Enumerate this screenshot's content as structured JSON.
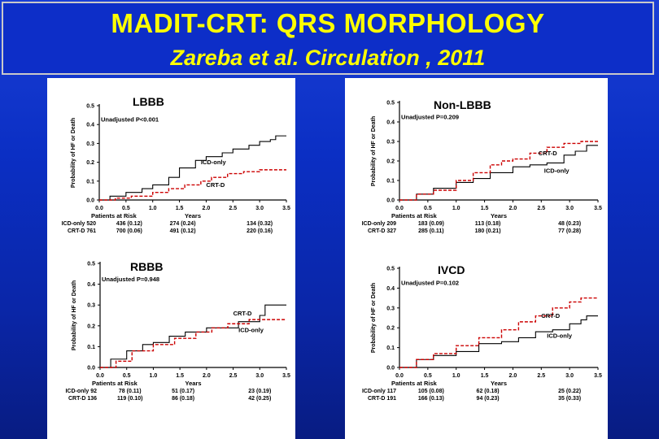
{
  "header": {
    "title": "MADIT-CRT: QRS MORPHOLOGY",
    "subtitle": "Zareba et al. Circulation , 2011"
  },
  "chart_data": [
    {
      "type": "line",
      "title": "LBBB",
      "ylabel": "Probability of HF or Death",
      "xlabel": "Years",
      "xlim": [
        0,
        3.5
      ],
      "ylim": [
        0,
        0.5
      ],
      "xticks": [
        "0.0",
        "0.5",
        "1.0",
        "1.5",
        "2.0",
        "2.5",
        "3.0",
        "3.5"
      ],
      "yticks": [
        "0.0",
        "0.1",
        "0.2",
        "0.3",
        "0.4",
        "0.5"
      ],
      "pvalue_text": "Unadjusted P<0.001",
      "series": [
        {
          "name": "ICD-only",
          "style": "solid",
          "color": "#000000",
          "points": [
            [
              0,
              0
            ],
            [
              0.2,
              0.02
            ],
            [
              0.5,
              0.04
            ],
            [
              0.8,
              0.06
            ],
            [
              1.0,
              0.08
            ],
            [
              1.3,
              0.12
            ],
            [
              1.5,
              0.17
            ],
            [
              1.8,
              0.21
            ],
            [
              2.0,
              0.23
            ],
            [
              2.3,
              0.25
            ],
            [
              2.5,
              0.27
            ],
            [
              2.8,
              0.29
            ],
            [
              3.0,
              0.31
            ],
            [
              3.2,
              0.32
            ],
            [
              3.3,
              0.34
            ],
            [
              3.5,
              0.34
            ]
          ]
        },
        {
          "name": "CRT-D",
          "style": "dashed",
          "color": "#cc0000",
          "points": [
            [
              0,
              0
            ],
            [
              0.3,
              0.01
            ],
            [
              0.6,
              0.02
            ],
            [
              1.0,
              0.04
            ],
            [
              1.3,
              0.06
            ],
            [
              1.6,
              0.08
            ],
            [
              1.9,
              0.1
            ],
            [
              2.1,
              0.12
            ],
            [
              2.4,
              0.14
            ],
            [
              2.7,
              0.15
            ],
            [
              3.0,
              0.16
            ],
            [
              3.5,
              0.16
            ]
          ]
        }
      ],
      "annotations": [
        {
          "text": "ICD-only",
          "x": 1.9,
          "y": 0.19
        },
        {
          "text": "CRT-D",
          "x": 2.0,
          "y": 0.07
        }
      ],
      "risk_table": {
        "header": "Patients at Risk",
        "rows": [
          {
            "label": "ICD-only 520",
            "values": [
              "436 (0.12)",
              "274 (0.24)",
              "134 (0.32)"
            ]
          },
          {
            "label": "CRT-D 761",
            "values": [
              "700 (0.06)",
              "491 (0.12)",
              "220 (0.16)"
            ]
          }
        ]
      }
    },
    {
      "type": "line",
      "title": "Non-LBBB",
      "ylabel": "Probability of HF or Death",
      "xlabel": "Years",
      "xlim": [
        0,
        3.5
      ],
      "ylim": [
        0,
        0.5
      ],
      "xticks": [
        "0.0",
        "0.5",
        "1.0",
        "1.5",
        "2.0",
        "2.5",
        "3.0",
        "3.5"
      ],
      "yticks": [
        "0.0",
        "0.1",
        "0.2",
        "0.3",
        "0.4",
        "0.5"
      ],
      "pvalue_text": "Unadjusted P=0.209",
      "series": [
        {
          "name": "ICD-only",
          "style": "solid",
          "color": "#000000",
          "points": [
            [
              0,
              0
            ],
            [
              0.3,
              0.03
            ],
            [
              0.6,
              0.06
            ],
            [
              1.0,
              0.09
            ],
            [
              1.3,
              0.11
            ],
            [
              1.6,
              0.14
            ],
            [
              2.0,
              0.17
            ],
            [
              2.3,
              0.18
            ],
            [
              2.6,
              0.19
            ],
            [
              2.9,
              0.23
            ],
            [
              3.1,
              0.25
            ],
            [
              3.3,
              0.28
            ],
            [
              3.5,
              0.28
            ]
          ]
        },
        {
          "name": "CRT-D",
          "style": "dashed",
          "color": "#cc0000",
          "points": [
            [
              0,
              0
            ],
            [
              0.3,
              0.03
            ],
            [
              0.6,
              0.05
            ],
            [
              1.0,
              0.1
            ],
            [
              1.3,
              0.14
            ],
            [
              1.6,
              0.18
            ],
            [
              1.8,
              0.2
            ],
            [
              2.0,
              0.21
            ],
            [
              2.3,
              0.24
            ],
            [
              2.6,
              0.27
            ],
            [
              2.9,
              0.29
            ],
            [
              3.2,
              0.3
            ],
            [
              3.5,
              0.3
            ]
          ]
        }
      ],
      "annotations": [
        {
          "text": "CRT-D",
          "x": 2.45,
          "y": 0.23
        },
        {
          "text": "ICD-only",
          "x": 2.55,
          "y": 0.14
        }
      ],
      "risk_table": {
        "header": "Patients at Risk",
        "rows": [
          {
            "label": "ICD-only 209",
            "values": [
              "183 (0.09)",
              "113 (0.18)",
              "48 (0.23)"
            ]
          },
          {
            "label": "CRT-D 327",
            "values": [
              "285 (0.11)",
              "180 (0.21)",
              "77 (0.28)"
            ]
          }
        ]
      }
    },
    {
      "type": "line",
      "title": "RBBB",
      "ylabel": "Probability of HF or Death",
      "xlabel": "Years",
      "xlim": [
        0,
        3.5
      ],
      "ylim": [
        0,
        0.5
      ],
      "xticks": [
        "0.0",
        "0.5",
        "1.0",
        "1.5",
        "2.0",
        "2.5",
        "3.0",
        "3.5"
      ],
      "yticks": [
        "0.0",
        "0.1",
        "0.2",
        "0.3",
        "0.4",
        "0.5"
      ],
      "pvalue_text": "Unadjusted P=0.948",
      "series": [
        {
          "name": "ICD-only",
          "style": "solid",
          "color": "#000000",
          "points": [
            [
              0,
              0
            ],
            [
              0.2,
              0.04
            ],
            [
              0.5,
              0.08
            ],
            [
              0.8,
              0.11
            ],
            [
              1.0,
              0.12
            ],
            [
              1.3,
              0.15
            ],
            [
              1.6,
              0.17
            ],
            [
              2.0,
              0.19
            ],
            [
              2.3,
              0.19
            ],
            [
              2.6,
              0.22
            ],
            [
              3.0,
              0.25
            ],
            [
              3.1,
              0.3
            ],
            [
              3.5,
              0.3
            ]
          ]
        },
        {
          "name": "CRT-D",
          "style": "dashed",
          "color": "#cc0000",
          "points": [
            [
              0,
              0
            ],
            [
              0.3,
              0.03
            ],
            [
              0.6,
              0.08
            ],
            [
              1.0,
              0.11
            ],
            [
              1.4,
              0.14
            ],
            [
              1.8,
              0.17
            ],
            [
              2.1,
              0.19
            ],
            [
              2.4,
              0.21
            ],
            [
              2.8,
              0.23
            ],
            [
              3.2,
              0.23
            ],
            [
              3.5,
              0.23
            ]
          ]
        }
      ],
      "annotations": [
        {
          "text": "CRT-D",
          "x": 2.5,
          "y": 0.25
        },
        {
          "text": "ICD-only",
          "x": 2.6,
          "y": 0.17
        }
      ],
      "risk_table": {
        "header": "Patients at Risk",
        "rows": [
          {
            "label": "ICD-only 92",
            "values": [
              "78 (0.11)",
              "51 (0.17)",
              "23 (0.19)"
            ]
          },
          {
            "label": "CRT-D 136",
            "values": [
              "119 (0.10)",
              "86 (0.18)",
              "42 (0.25)"
            ]
          }
        ]
      }
    },
    {
      "type": "line",
      "title": "IVCD",
      "ylabel": "Probability of HF or Death",
      "xlabel": "Years",
      "xlim": [
        0,
        3.5
      ],
      "ylim": [
        0,
        0.5
      ],
      "xticks": [
        "0.0",
        "0.5",
        "1.0",
        "1.5",
        "2.0",
        "2.5",
        "3.0",
        "3.5"
      ],
      "yticks": [
        "0.0",
        "0.1",
        "0.2",
        "0.3",
        "0.4",
        "0.5"
      ],
      "pvalue_text": "Unadjusted P=0.102",
      "series": [
        {
          "name": "ICD-only",
          "style": "solid",
          "color": "#000000",
          "points": [
            [
              0,
              0
            ],
            [
              0.3,
              0.04
            ],
            [
              0.6,
              0.06
            ],
            [
              1.0,
              0.08
            ],
            [
              1.4,
              0.12
            ],
            [
              1.8,
              0.13
            ],
            [
              2.1,
              0.15
            ],
            [
              2.4,
              0.18
            ],
            [
              2.7,
              0.19
            ],
            [
              3.0,
              0.22
            ],
            [
              3.2,
              0.24
            ],
            [
              3.3,
              0.26
            ],
            [
              3.5,
              0.26
            ]
          ]
        },
        {
          "name": "CRT-D",
          "style": "dashed",
          "color": "#cc0000",
          "points": [
            [
              0,
              0
            ],
            [
              0.3,
              0.04
            ],
            [
              0.6,
              0.07
            ],
            [
              1.0,
              0.11
            ],
            [
              1.4,
              0.15
            ],
            [
              1.8,
              0.19
            ],
            [
              2.1,
              0.23
            ],
            [
              2.4,
              0.26
            ],
            [
              2.7,
              0.3
            ],
            [
              3.0,
              0.33
            ],
            [
              3.2,
              0.35
            ],
            [
              3.5,
              0.35
            ]
          ]
        }
      ],
      "annotations": [
        {
          "text": "CRT-D",
          "x": 2.5,
          "y": 0.25
        },
        {
          "text": "ICD-only",
          "x": 2.6,
          "y": 0.15
        }
      ],
      "risk_table": {
        "header": "Patients at Risk",
        "rows": [
          {
            "label": "ICD-only 117",
            "values": [
              "105 (0.08)",
              "62 (0.18)",
              "25 (0.22)"
            ]
          },
          {
            "label": "CRT-D 191",
            "values": [
              "166 (0.13)",
              "94 (0.23)",
              "35 (0.33)"
            ]
          }
        ]
      }
    }
  ]
}
